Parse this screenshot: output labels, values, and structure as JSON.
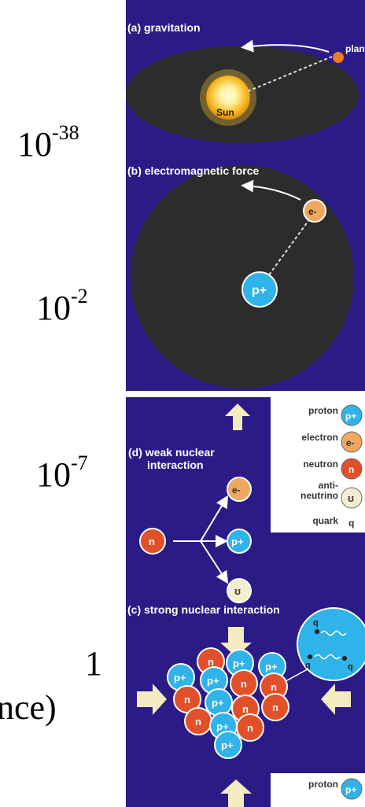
{
  "strengths": {
    "gravitation": {
      "base": "10",
      "exponent": "-38"
    },
    "electromagnetic": {
      "base": "10",
      "exponent": "-2"
    },
    "weak": {
      "base": "10",
      "exponent": "-7"
    },
    "strong": {
      "value": "1"
    },
    "fragment": "nce)"
  },
  "panels": {
    "gravitation": {
      "title": "(a) gravitation",
      "sun": "Sun",
      "planet": "planet"
    },
    "electromagnetic": {
      "title": "(b) electromagnetic force",
      "proton": "p+",
      "electron": "e-"
    },
    "weak": {
      "title_line1": "(d) weak nuclear",
      "title_line2": "interaction",
      "neutron": "n",
      "electron": "e-",
      "proton": "p+",
      "antineutrino": "ʊ"
    },
    "strong": {
      "title": "(c) strong nuclear interaction",
      "quark": "q"
    }
  },
  "legend": {
    "items": [
      {
        "label": "proton",
        "symbol": "p+",
        "color": "#2fb3e8"
      },
      {
        "label": "electron",
        "symbol": "e-",
        "color": "#f0a860"
      },
      {
        "label": "neutron",
        "symbol": "n",
        "color": "#e2502a"
      },
      {
        "label": "anti-neutrino",
        "label_line1": "anti-",
        "label_line2": "neutrino",
        "symbol": "ʊ",
        "color": "#f3eecf"
      },
      {
        "label": "quark",
        "symbol": "q",
        "color": "#ffffff"
      }
    ],
    "bottom_label": "proton",
    "bottom_symbol": "p+"
  },
  "colors": {
    "panel_bg": "#2b1b86",
    "orbit": "#2c2c2c",
    "proton": "#2fb3e8",
    "neutron": "#e2502a",
    "electron": "#f0a860",
    "arrow": "#f4ecc0"
  }
}
